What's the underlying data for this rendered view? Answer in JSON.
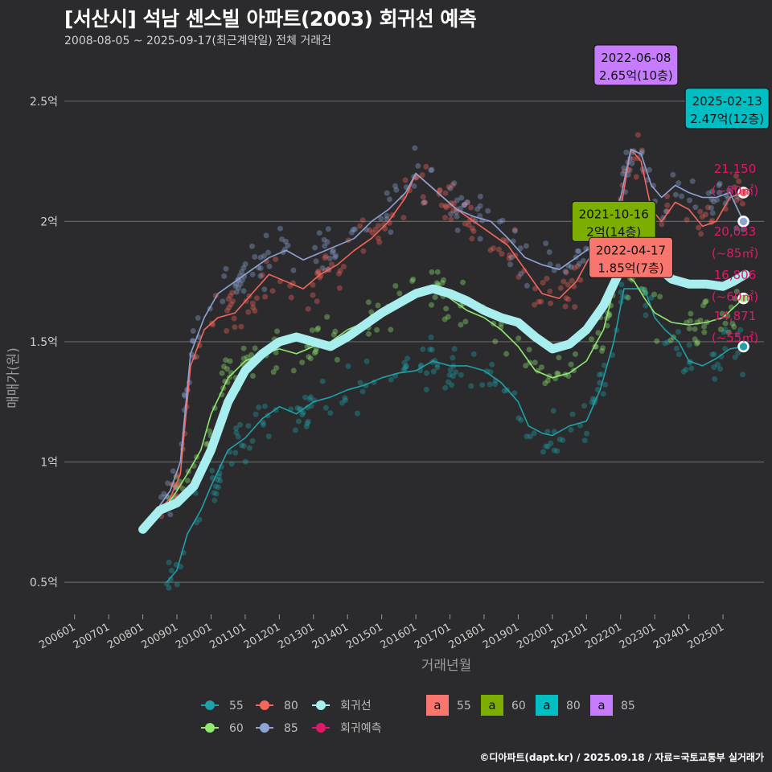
{
  "title": "[서산시] 석남 센스빌 아파트(2003) 회귀선 예측",
  "subtitle": "2008-08-05 ~ 2025-09-17(최근계약일) 전체 거래건",
  "footer": "©디아파트(dapt.kr) / 2025.09.18 / 자료=국토교통부 실거래가",
  "chart_data": {
    "type": "line",
    "xlabel": "거래년월",
    "ylabel": "매매가(원)",
    "x_ticks": [
      "200601",
      "200701",
      "200801",
      "200901",
      "201001",
      "201101",
      "201201",
      "201301",
      "201401",
      "201501",
      "201601",
      "201701",
      "201801",
      "201901",
      "202001",
      "202101",
      "202201",
      "202301",
      "202401",
      "202501"
    ],
    "y_ticks": [
      {
        "value": 0.5,
        "label": "0.5억"
      },
      {
        "value": 1.0,
        "label": "1억"
      },
      {
        "value": 1.5,
        "label": "1.5억"
      },
      {
        "value": 2.0,
        "label": "2억"
      },
      {
        "value": 2.5,
        "label": "2.5억"
      }
    ],
    "xlim": [
      2005.7,
      2026.2
    ],
    "ylim": [
      0.38,
      2.72
    ],
    "colors": {
      "s55": "#1fa1a8",
      "s60": "#90e870",
      "s80": "#f4655c",
      "s85": "#8fa3d4",
      "regression": "#a8eeee",
      "forecast": "#e0186a"
    },
    "series": [
      {
        "name": "55",
        "color": "#1fa1a8",
        "x": [
          2008.7,
          2009.0,
          2009.3,
          2009.7,
          2010.0,
          2010.5,
          2011.0,
          2011.5,
          2012.0,
          2012.5,
          2013.0,
          2013.5,
          2014.0,
          2014.5,
          2015.0,
          2015.5,
          2016.0,
          2016.5,
          2017.0,
          2017.5,
          2018.0,
          2018.5,
          2019.0,
          2019.3,
          2019.7,
          2020.0,
          2020.5,
          2021.0,
          2021.4,
          2021.8,
          2022.1,
          2022.4,
          2022.7,
          2023.0,
          2023.3,
          2023.7,
          2024.0,
          2024.4,
          2024.8,
          2025.2,
          2025.6
        ],
        "values": [
          0.5,
          0.55,
          0.7,
          0.8,
          0.9,
          1.05,
          1.1,
          1.18,
          1.23,
          1.2,
          1.25,
          1.27,
          1.3,
          1.32,
          1.35,
          1.37,
          1.38,
          1.42,
          1.4,
          1.4,
          1.38,
          1.33,
          1.25,
          1.15,
          1.12,
          1.11,
          1.15,
          1.17,
          1.3,
          1.5,
          1.72,
          1.72,
          1.72,
          1.6,
          1.55,
          1.5,
          1.42,
          1.4,
          1.43,
          1.47,
          1.48
        ]
      },
      {
        "name": "60",
        "color": "#90e870",
        "x": [
          2008.7,
          2009.0,
          2009.3,
          2009.7,
          2010.0,
          2010.5,
          2011.0,
          2011.5,
          2012.0,
          2012.5,
          2013.0,
          2013.5,
          2014.0,
          2014.5,
          2015.0,
          2015.5,
          2016.0,
          2016.5,
          2017.0,
          2017.5,
          2018.0,
          2018.5,
          2019.0,
          2019.5,
          2020.0,
          2020.5,
          2021.0,
          2021.5,
          2021.8,
          2022.0,
          2022.4,
          2022.7,
          2023.0,
          2023.5,
          2024.0,
          2024.5,
          2025.0,
          2025.3,
          2025.6
        ],
        "values": [
          0.82,
          0.88,
          0.95,
          1.05,
          1.2,
          1.35,
          1.42,
          1.45,
          1.47,
          1.45,
          1.48,
          1.5,
          1.55,
          1.58,
          1.62,
          1.67,
          1.7,
          1.72,
          1.68,
          1.63,
          1.6,
          1.55,
          1.48,
          1.38,
          1.35,
          1.37,
          1.42,
          1.55,
          1.72,
          1.8,
          1.75,
          1.68,
          1.62,
          1.58,
          1.57,
          1.58,
          1.6,
          1.64,
          1.68
        ]
      },
      {
        "name": "80",
        "color": "#f4655c",
        "x": [
          2008.5,
          2008.8,
          2009.1,
          2009.4,
          2009.8,
          2010.2,
          2010.7,
          2011.2,
          2011.7,
          2012.2,
          2012.7,
          2013.2,
          2013.7,
          2014.2,
          2014.7,
          2015.2,
          2015.7,
          2016.0,
          2016.4,
          2016.8,
          2017.2,
          2017.7,
          2018.2,
          2018.7,
          2019.2,
          2019.7,
          2020.2,
          2020.7,
          2021.2,
          2021.7,
          2022.0,
          2022.3,
          2022.6,
          2022.9,
          2023.2,
          2023.6,
          2024.0,
          2024.4,
          2024.8,
          2025.2,
          2025.6
        ],
        "values": [
          0.8,
          0.85,
          0.95,
          1.4,
          1.55,
          1.6,
          1.62,
          1.7,
          1.78,
          1.75,
          1.72,
          1.78,
          1.82,
          1.88,
          1.93,
          2.0,
          2.1,
          2.2,
          2.15,
          2.1,
          2.05,
          2.0,
          1.95,
          1.9,
          1.8,
          1.7,
          1.68,
          1.75,
          1.88,
          1.9,
          2.05,
          2.3,
          2.25,
          2.05,
          2.0,
          2.08,
          2.05,
          1.98,
          2.0,
          2.1,
          2.12
        ]
      },
      {
        "name": "85",
        "color": "#8fa3d4",
        "x": [
          2008.5,
          2008.8,
          2009.1,
          2009.4,
          2009.8,
          2010.2,
          2010.7,
          2011.2,
          2011.7,
          2012.2,
          2012.7,
          2013.2,
          2013.7,
          2014.2,
          2014.7,
          2015.2,
          2015.7,
          2016.0,
          2016.4,
          2016.8,
          2017.2,
          2017.7,
          2018.2,
          2018.7,
          2019.2,
          2019.7,
          2020.2,
          2020.7,
          2021.2,
          2021.7,
          2022.0,
          2022.3,
          2022.6,
          2022.9,
          2023.2,
          2023.6,
          2024.0,
          2024.4,
          2024.8,
          2025.2,
          2025.6
        ],
        "values": [
          0.82,
          0.88,
          1.0,
          1.45,
          1.6,
          1.7,
          1.75,
          1.8,
          1.85,
          1.88,
          1.84,
          1.87,
          1.9,
          1.93,
          2.0,
          2.05,
          2.12,
          2.2,
          2.15,
          2.1,
          2.05,
          2.02,
          2.0,
          1.93,
          1.85,
          1.82,
          1.8,
          1.85,
          1.9,
          2.0,
          2.1,
          2.3,
          2.28,
          2.15,
          2.1,
          2.15,
          2.12,
          2.1,
          2.1,
          2.12,
          2.0
        ]
      },
      {
        "name": "회귀선",
        "color": "#a8eeee",
        "x": [
          2008.0,
          2008.5,
          2009.0,
          2009.5,
          2010.0,
          2010.5,
          2011.0,
          2011.5,
          2012.0,
          2012.5,
          2013.0,
          2013.5,
          2014.0,
          2014.5,
          2015.0,
          2015.5,
          2016.0,
          2016.5,
          2017.0,
          2017.5,
          2018.0,
          2018.5,
          2019.0,
          2019.5,
          2020.0,
          2020.5,
          2021.0,
          2021.5,
          2022.0,
          2022.3,
          2022.7,
          2023.0,
          2023.5,
          2024.0,
          2024.5,
          2025.0,
          2025.3,
          2025.65
        ],
        "values": [
          0.72,
          0.8,
          0.83,
          0.9,
          1.05,
          1.25,
          1.38,
          1.45,
          1.5,
          1.52,
          1.5,
          1.48,
          1.52,
          1.57,
          1.62,
          1.66,
          1.7,
          1.72,
          1.7,
          1.67,
          1.63,
          1.6,
          1.58,
          1.52,
          1.47,
          1.49,
          1.55,
          1.65,
          1.8,
          1.86,
          1.84,
          1.82,
          1.76,
          1.74,
          1.74,
          1.73,
          1.75,
          1.78
        ]
      }
    ],
    "annotations": [
      {
        "date": "2022-06-08",
        "price": "2.65억(10층)",
        "x": 2022.45,
        "y": 2.65,
        "color": "#c77cff"
      },
      {
        "date": "2025-02-13",
        "price": "2.47억(12층)",
        "x": 2025.12,
        "y": 2.47,
        "color": "#00bfc4"
      },
      {
        "date": "2021-10-16",
        "price": "2억(14층)",
        "x": 2021.8,
        "y": 2.0,
        "color": "#7cae00"
      },
      {
        "date": "2022-04-17",
        "price": "1.85억(7층)",
        "x": 2022.3,
        "y": 1.85,
        "color": "#f8766d"
      }
    ],
    "forecasts": [
      {
        "value": "21,150",
        "area": "(~80㎡)",
        "series": "80"
      },
      {
        "value": "20,033",
        "area": "(~85㎡)",
        "series": "85"
      },
      {
        "value": "16,806",
        "area": "(~60㎡)",
        "series": "60"
      },
      {
        "value": "14,871",
        "area": "(~55㎡)",
        "series": "55"
      }
    ],
    "legend": {
      "lines": [
        "55",
        "80",
        "회귀선",
        "60",
        "85",
        "회귀예측"
      ],
      "labels": [
        {
          "text": "55",
          "box_letter": "a",
          "color": "#f8766d"
        },
        {
          "text": "60",
          "box_letter": "a",
          "color": "#7cae00"
        },
        {
          "text": "80",
          "box_letter": "a",
          "color": "#00bfc4"
        },
        {
          "text": "85",
          "box_letter": "a",
          "color": "#c77cff"
        }
      ]
    }
  }
}
